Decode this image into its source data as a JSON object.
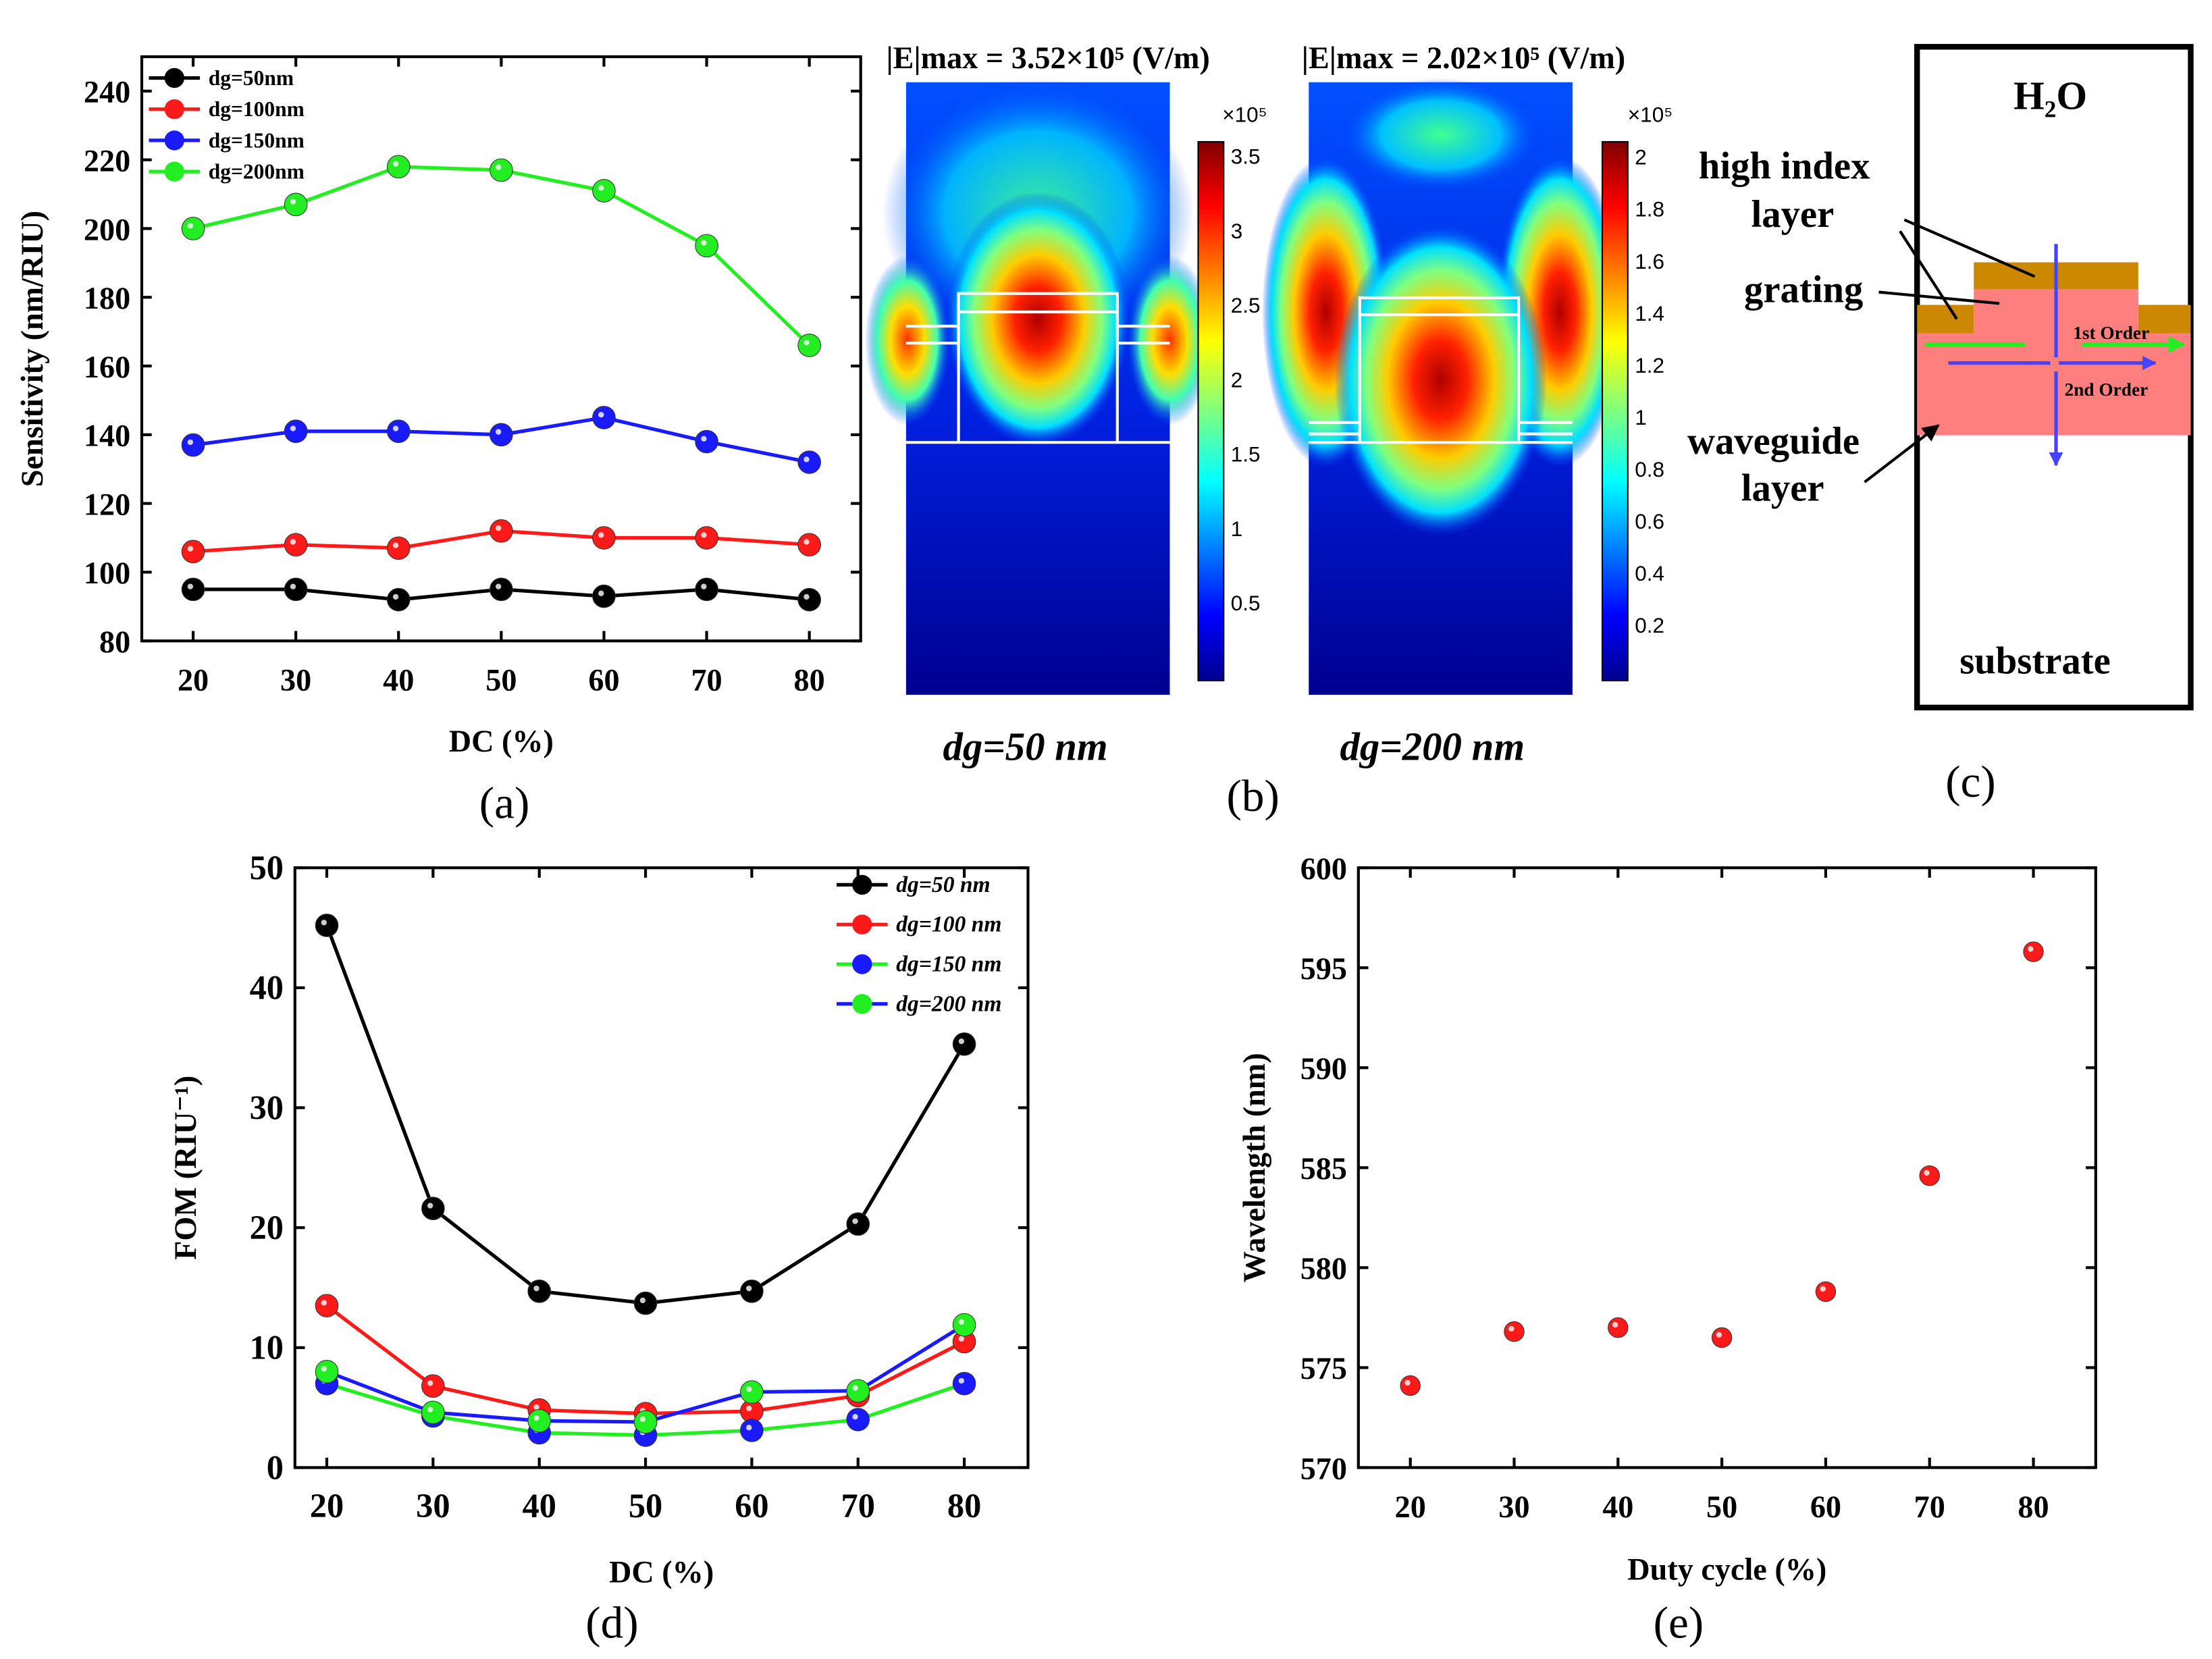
{
  "panel_labels": {
    "a": "(a)",
    "b": "(b)",
    "c": "(c)",
    "d": "(d)",
    "e": "(e)"
  },
  "chart_data": [
    {
      "id": "a",
      "type": "line",
      "xlabel": "DC (%)",
      "ylabel": "Sensitivity (nm/RIU)",
      "x": [
        20,
        30,
        40,
        50,
        60,
        70,
        80
      ],
      "xticks": [
        20,
        30,
        40,
        50,
        60,
        70,
        80
      ],
      "yticks": [
        80,
        100,
        120,
        140,
        160,
        180,
        200,
        220,
        240
      ],
      "xlim": [
        15,
        85
      ],
      "ylim": [
        80,
        250
      ],
      "legend": "top-left",
      "series": [
        {
          "name": "dg=50nm",
          "color": "#000000",
          "line_color": "#000000",
          "values": [
            95,
            95,
            92,
            95,
            93,
            95,
            92
          ]
        },
        {
          "name": "dg=100nm",
          "color": "#ff1a1a",
          "line_color": "#ff1a1a",
          "values": [
            106,
            108,
            107,
            112,
            110,
            110,
            108
          ]
        },
        {
          "name": "dg=150nm",
          "color": "#1a1aff",
          "line_color": "#1a1aff",
          "values": [
            137,
            141,
            141,
            140,
            145,
            138,
            132
          ]
        },
        {
          "name": "dg=200nm",
          "color": "#22ee22",
          "line_color": "#22ee22",
          "values": [
            200,
            207,
            218,
            217,
            211,
            195,
            166
          ]
        }
      ]
    },
    {
      "id": "d",
      "type": "line",
      "xlabel": "DC (%)",
      "ylabel": "FOM (RIU⁻¹)",
      "x": [
        20,
        30,
        40,
        50,
        60,
        70,
        80
      ],
      "xticks": [
        20,
        30,
        40,
        50,
        60,
        70,
        80
      ],
      "yticks": [
        0,
        10,
        20,
        30,
        40,
        50
      ],
      "xlim": [
        17,
        86
      ],
      "ylim": [
        0,
        50
      ],
      "legend": "top-right",
      "series": [
        {
          "name": "dg=50 nm",
          "color": "#000000",
          "line_color": "#000000",
          "values": [
            45.2,
            21.6,
            14.7,
            13.7,
            14.7,
            20.3,
            35.3
          ]
        },
        {
          "name": "dg=100 nm",
          "color": "#ff1a1a",
          "line_color": "#ff1a1a",
          "values": [
            13.5,
            6.8,
            4.8,
            4.5,
            4.7,
            6.0,
            10.5
          ]
        },
        {
          "name": "dg=150 nm",
          "color": "#1a1aff",
          "line_color": "#22ee22",
          "values": [
            7.0,
            4.3,
            2.9,
            2.7,
            3.1,
            4.0,
            7.0
          ]
        },
        {
          "name": "dg=200 nm",
          "color": "#22ee22",
          "line_color": "#1a1aff",
          "values": [
            8.0,
            4.6,
            3.9,
            3.8,
            6.3,
            6.4,
            11.9
          ]
        }
      ]
    },
    {
      "id": "e",
      "type": "scatter",
      "xlabel": "Duty cycle (%)",
      "ylabel": "Wavelength (nm)",
      "x": [
        20,
        30,
        40,
        50,
        60,
        70,
        80
      ],
      "xticks": [
        20,
        30,
        40,
        50,
        60,
        70,
        80
      ],
      "yticks": [
        570,
        575,
        580,
        585,
        590,
        595,
        600
      ],
      "xlim": [
        15,
        86
      ],
      "ylim": [
        570,
        600
      ],
      "series": [
        {
          "name": "Wavelength",
          "color": "#ff1a1a",
          "values": [
            574.1,
            576.8,
            577.0,
            576.5,
            578.8,
            584.6,
            595.8
          ]
        }
      ]
    }
  ],
  "field_maps": [
    {
      "title": "|E|max = 3.52×10⁵ (V/m)",
      "caption": "dg=50 nm",
      "scale": "×10⁵",
      "colorbar_ticks": [
        "3.5",
        "3",
        "2.5",
        "2",
        "1.5",
        "1",
        "0.5"
      ]
    },
    {
      "title": "|E|max = 2.02×10⁵ (V/m)",
      "caption": "dg=200 nm",
      "scale": "×10⁵",
      "colorbar_ticks": [
        "2",
        "1.8",
        "1.6",
        "1.4",
        "1.2",
        "1",
        "0.8",
        "0.6",
        "0.4",
        "0.2"
      ]
    }
  ],
  "schematic": {
    "medium": "H₂O",
    "high_index": "high index",
    "high_index_2": "layer",
    "grating": "grating",
    "waveguide": "waveguide",
    "waveguide_2": "layer",
    "first_order": "1st Order",
    "second_order": "2nd Order",
    "substrate": "substrate"
  }
}
